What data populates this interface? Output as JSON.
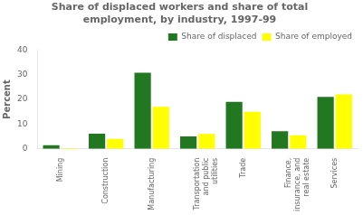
{
  "chart_data": {
    "type": "bar",
    "title": "Share of displaced workers and share of total\nemployment, by industry, 1997-99",
    "ylabel": "Percent",
    "categories": [
      "Mining",
      "Construction",
      "Manufacturing",
      "Transportation\nand public\nutilities",
      "Trade",
      "Finance,\ninsurance, and\nreal estate",
      "Services"
    ],
    "series": [
      {
        "name": "Share of displaced",
        "color": "#217821",
        "values": [
          1.5,
          6.1,
          30.8,
          5.0,
          19.0,
          7.1,
          21.0
        ]
      },
      {
        "name": "Share of employed",
        "color": "#ffff00",
        "values": [
          0.3,
          4.0,
          17.0,
          6.0,
          15.0,
          5.5,
          22.0
        ]
      }
    ],
    "ylim": [
      0,
      40
    ],
    "yticks": [
      0,
      10,
      20,
      30,
      40
    ],
    "grid": false,
    "legend": "upper right"
  }
}
